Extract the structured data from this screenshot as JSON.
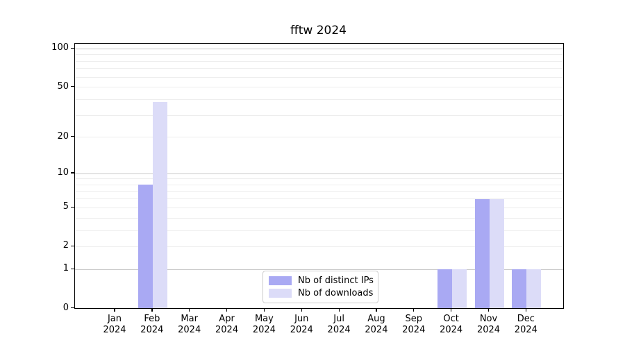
{
  "title": "fftw 2024",
  "chart_data": {
    "type": "bar",
    "title": "fftw 2024",
    "months": [
      "Jan",
      "Feb",
      "Mar",
      "Apr",
      "May",
      "Jun",
      "Jul",
      "Aug",
      "Sep",
      "Oct",
      "Nov",
      "Dec"
    ],
    "year_label": "2024",
    "series": [
      {
        "name": "Nb of distinct IPs",
        "color": "#a9a9f3",
        "values": [
          0,
          8,
          0,
          0,
          0,
          0,
          0,
          0,
          0,
          1,
          6,
          1
        ]
      },
      {
        "name": "Nb of downloads",
        "color": "#dcdcf8",
        "values": [
          0,
          38,
          0,
          0,
          0,
          0,
          0,
          0,
          0,
          1,
          6,
          1
        ]
      }
    ],
    "y_axis": {
      "scale": "log10(1+v)",
      "tick_values": [
        0,
        1,
        2,
        5,
        10,
        20,
        50,
        100
      ],
      "major_gridlines": [
        1,
        10,
        100
      ],
      "minor_gridlines": [
        2,
        3,
        4,
        5,
        6,
        7,
        8,
        9,
        20,
        30,
        40,
        50,
        60,
        70,
        80,
        90
      ],
      "range": [
        0,
        110
      ]
    },
    "legend": {
      "position": "lower-center-inside",
      "entries": [
        "Nb of distinct IPs",
        "Nb of downloads"
      ]
    }
  }
}
